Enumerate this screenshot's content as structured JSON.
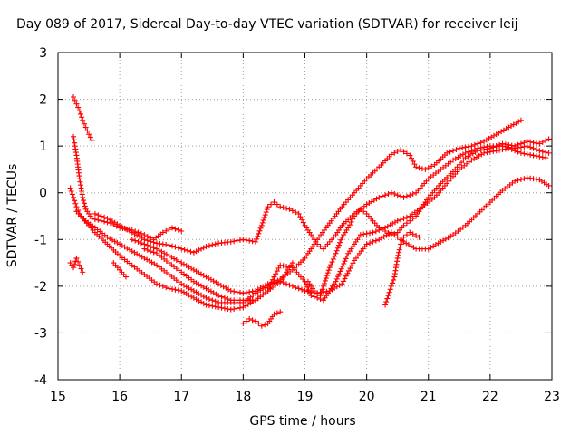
{
  "chart_data": {
    "type": "scatter",
    "title": "Day 089 of 2017, Sidereal Day-to-day VTEC variation (SDTVAR) for receiver leij",
    "xlabel": "GPS time / hours",
    "ylabel": "SDTVAR / TECUs",
    "xlim": [
      15,
      23
    ],
    "ylim": [
      -4,
      3
    ],
    "xticks": [
      "15",
      "16",
      "17",
      "18",
      "19",
      "20",
      "21",
      "22",
      "23"
    ],
    "yticks": [
      "-4",
      "-3",
      "-2",
      "-1",
      "0",
      "1",
      "2",
      "3"
    ],
    "grid": true,
    "marker": "+",
    "color": "#ff0000",
    "series": [
      {
        "name": "track-a",
        "points": [
          [
            15.25,
            2.05
          ],
          [
            15.3,
            1.9
          ],
          [
            15.35,
            1.75
          ],
          [
            15.4,
            1.55
          ],
          [
            15.45,
            1.4
          ],
          [
            15.5,
            1.25
          ],
          [
            15.55,
            1.12
          ]
        ]
      },
      {
        "name": "track-b",
        "points": [
          [
            15.25,
            1.2
          ],
          [
            15.3,
            0.8
          ],
          [
            15.35,
            0.3
          ],
          [
            15.4,
            -0.1
          ],
          [
            15.45,
            -0.35
          ],
          [
            15.55,
            -0.55
          ],
          [
            15.7,
            -0.6
          ],
          [
            15.85,
            -0.65
          ],
          [
            16.0,
            -0.75
          ],
          [
            16.2,
            -0.8
          ],
          [
            16.4,
            -0.9
          ],
          [
            16.55,
            -1.0
          ],
          [
            16.7,
            -0.85
          ],
          [
            16.85,
            -0.75
          ],
          [
            17.0,
            -0.82
          ]
        ]
      },
      {
        "name": "track-c",
        "points": [
          [
            15.2,
            0.1
          ],
          [
            15.25,
            -0.1
          ],
          [
            15.3,
            -0.3
          ],
          [
            15.35,
            -0.45
          ],
          [
            15.45,
            -0.6
          ],
          [
            15.6,
            -0.75
          ],
          [
            15.8,
            -0.95
          ],
          [
            16.0,
            -1.1
          ],
          [
            16.2,
            -1.25
          ],
          [
            16.4,
            -1.4
          ],
          [
            16.6,
            -1.55
          ],
          [
            16.8,
            -1.75
          ],
          [
            17.0,
            -1.95
          ],
          [
            17.2,
            -2.1
          ],
          [
            17.4,
            -2.25
          ],
          [
            17.6,
            -2.35
          ],
          [
            17.8,
            -2.35
          ],
          [
            18.0,
            -2.35
          ],
          [
            18.2,
            -2.15
          ],
          [
            18.4,
            -2.0
          ],
          [
            18.6,
            -1.85
          ],
          [
            18.8,
            -1.65
          ],
          [
            19.0,
            -1.4
          ],
          [
            19.2,
            -1.0
          ],
          [
            19.4,
            -0.65
          ],
          [
            19.6,
            -0.3
          ],
          [
            19.8,
            0.0
          ],
          [
            20.0,
            0.3
          ],
          [
            20.2,
            0.55
          ],
          [
            20.4,
            0.82
          ],
          [
            20.55,
            0.92
          ],
          [
            20.7,
            0.8
          ],
          [
            20.8,
            0.55
          ],
          [
            20.95,
            0.5
          ],
          [
            21.1,
            0.6
          ],
          [
            21.3,
            0.85
          ],
          [
            21.5,
            0.95
          ],
          [
            21.7,
            1.0
          ],
          [
            21.9,
            1.1
          ],
          [
            22.1,
            1.25
          ],
          [
            22.3,
            1.4
          ],
          [
            22.5,
            1.55
          ]
        ]
      },
      {
        "name": "track-d",
        "points": [
          [
            15.3,
            -0.4
          ],
          [
            15.4,
            -0.55
          ],
          [
            15.5,
            -0.7
          ],
          [
            15.6,
            -0.85
          ],
          [
            15.8,
            -1.1
          ],
          [
            16.0,
            -1.35
          ],
          [
            16.2,
            -1.55
          ],
          [
            16.4,
            -1.75
          ],
          [
            16.6,
            -1.95
          ],
          [
            16.8,
            -2.05
          ],
          [
            17.0,
            -2.1
          ],
          [
            17.2,
            -2.25
          ],
          [
            17.4,
            -2.4
          ],
          [
            17.6,
            -2.45
          ],
          [
            17.8,
            -2.5
          ],
          [
            18.0,
            -2.45
          ],
          [
            18.2,
            -2.3
          ],
          [
            18.4,
            -2.1
          ],
          [
            18.6,
            -1.9
          ],
          [
            18.8,
            -1.5
          ]
        ]
      },
      {
        "name": "track-e",
        "points": [
          [
            15.6,
            -0.45
          ],
          [
            15.8,
            -0.55
          ],
          [
            16.0,
            -0.7
          ],
          [
            16.2,
            -0.85
          ],
          [
            16.4,
            -1.0
          ],
          [
            16.6,
            -1.08
          ],
          [
            16.8,
            -1.12
          ],
          [
            17.0,
            -1.2
          ],
          [
            17.2,
            -1.28
          ],
          [
            17.4,
            -1.15
          ],
          [
            17.6,
            -1.08
          ],
          [
            17.8,
            -1.05
          ],
          [
            18.0,
            -1.0
          ],
          [
            18.2,
            -1.05
          ],
          [
            18.3,
            -0.7
          ],
          [
            18.4,
            -0.3
          ],
          [
            18.5,
            -0.2
          ],
          [
            18.6,
            -0.3
          ],
          [
            18.75,
            -0.35
          ],
          [
            18.9,
            -0.45
          ],
          [
            19.0,
            -0.7
          ],
          [
            19.1,
            -0.9
          ],
          [
            19.2,
            -1.1
          ],
          [
            19.3,
            -1.2
          ],
          [
            19.4,
            -1.05
          ],
          [
            19.5,
            -0.9
          ],
          [
            19.6,
            -0.7
          ],
          [
            19.8,
            -0.45
          ],
          [
            20.0,
            -0.25
          ],
          [
            20.2,
            -0.1
          ],
          [
            20.4,
            0.0
          ],
          [
            20.6,
            -0.1
          ],
          [
            20.8,
            0.0
          ],
          [
            21.0,
            0.3
          ],
          [
            21.2,
            0.5
          ],
          [
            21.4,
            0.7
          ],
          [
            21.6,
            0.85
          ],
          [
            21.8,
            0.95
          ],
          [
            22.0,
            1.0
          ],
          [
            22.2,
            1.0
          ],
          [
            22.4,
            0.95
          ],
          [
            22.6,
            1.0
          ],
          [
            22.8,
            0.9
          ],
          [
            22.95,
            0.85
          ]
        ]
      },
      {
        "name": "track-f",
        "points": [
          [
            16.4,
            -1.2
          ],
          [
            16.6,
            -1.3
          ],
          [
            16.8,
            -1.5
          ],
          [
            17.0,
            -1.7
          ],
          [
            17.2,
            -1.9
          ],
          [
            17.4,
            -2.05
          ],
          [
            17.6,
            -2.2
          ],
          [
            17.8,
            -2.3
          ],
          [
            18.0,
            -2.3
          ],
          [
            18.2,
            -2.3
          ],
          [
            18.4,
            -2.1
          ],
          [
            18.5,
            -1.8
          ],
          [
            18.6,
            -1.55
          ],
          [
            18.8,
            -1.6
          ],
          [
            19.0,
            -1.9
          ],
          [
            19.1,
            -2.2
          ],
          [
            19.3,
            -2.3
          ],
          [
            19.5,
            -1.9
          ],
          [
            19.7,
            -1.3
          ],
          [
            19.9,
            -0.9
          ],
          [
            20.1,
            -0.85
          ],
          [
            20.3,
            -0.75
          ],
          [
            20.5,
            -0.6
          ],
          [
            20.7,
            -0.5
          ],
          [
            20.9,
            -0.3
          ],
          [
            21.1,
            -0.1
          ],
          [
            21.3,
            0.2
          ],
          [
            21.5,
            0.5
          ],
          [
            21.7,
            0.7
          ],
          [
            21.9,
            0.85
          ],
          [
            22.1,
            0.9
          ],
          [
            22.3,
            0.95
          ],
          [
            22.5,
            0.85
          ],
          [
            22.7,
            0.8
          ],
          [
            22.9,
            0.75
          ]
        ]
      },
      {
        "name": "track-g",
        "points": [
          [
            16.2,
            -1.0
          ],
          [
            16.4,
            -1.1
          ],
          [
            16.6,
            -1.2
          ],
          [
            16.8,
            -1.35
          ],
          [
            17.0,
            -1.5
          ],
          [
            17.2,
            -1.65
          ],
          [
            17.4,
            -1.8
          ],
          [
            17.6,
            -1.95
          ],
          [
            17.8,
            -2.1
          ],
          [
            18.0,
            -2.15
          ],
          [
            18.2,
            -2.1
          ],
          [
            18.4,
            -1.95
          ],
          [
            18.6,
            -1.9
          ],
          [
            18.8,
            -2.0
          ],
          [
            19.0,
            -2.1
          ],
          [
            19.2,
            -2.15
          ],
          [
            19.4,
            -2.1
          ],
          [
            19.6,
            -1.95
          ],
          [
            19.8,
            -1.45
          ],
          [
            20.0,
            -1.1
          ],
          [
            20.2,
            -1.0
          ],
          [
            20.4,
            -0.85
          ],
          [
            20.5,
            -0.95
          ],
          [
            20.6,
            -1.05
          ],
          [
            20.8,
            -1.2
          ],
          [
            21.0,
            -1.2
          ],
          [
            21.2,
            -1.05
          ],
          [
            21.4,
            -0.9
          ],
          [
            21.6,
            -0.7
          ],
          [
            21.8,
            -0.45
          ],
          [
            22.0,
            -0.2
          ],
          [
            22.2,
            0.05
          ],
          [
            22.4,
            0.25
          ],
          [
            22.6,
            0.32
          ],
          [
            22.8,
            0.28
          ],
          [
            22.95,
            0.15
          ]
        ]
      },
      {
        "name": "track-h",
        "points": [
          [
            19.05,
            -1.9
          ],
          [
            19.15,
            -2.1
          ],
          [
            19.25,
            -2.2
          ],
          [
            19.3,
            -2.0
          ],
          [
            19.4,
            -1.6
          ],
          [
            19.5,
            -1.3
          ],
          [
            19.6,
            -0.95
          ],
          [
            19.7,
            -0.75
          ],
          [
            19.8,
            -0.5
          ],
          [
            19.9,
            -0.35
          ],
          [
            20.0,
            -0.45
          ],
          [
            20.1,
            -0.6
          ],
          [
            20.2,
            -0.75
          ],
          [
            20.3,
            -0.82
          ],
          [
            20.4,
            -0.9
          ],
          [
            20.5,
            -0.85
          ],
          [
            20.6,
            -0.7
          ],
          [
            20.7,
            -0.6
          ],
          [
            20.8,
            -0.5
          ],
          [
            20.9,
            -0.3
          ],
          [
            21.0,
            -0.1
          ],
          [
            21.2,
            0.2
          ],
          [
            21.4,
            0.45
          ],
          [
            21.6,
            0.75
          ],
          [
            21.8,
            0.9
          ],
          [
            22.0,
            0.95
          ],
          [
            22.2,
            1.05
          ],
          [
            22.4,
            1.0
          ],
          [
            22.6,
            1.1
          ],
          [
            22.8,
            1.05
          ],
          [
            22.95,
            1.15
          ]
        ]
      },
      {
        "name": "track-i",
        "points": [
          [
            20.3,
            -2.4
          ],
          [
            20.35,
            -2.2
          ],
          [
            20.4,
            -2.0
          ],
          [
            20.45,
            -1.8
          ],
          [
            20.5,
            -1.4
          ],
          [
            20.55,
            -1.1
          ],
          [
            20.6,
            -0.95
          ],
          [
            20.7,
            -0.85
          ],
          [
            20.85,
            -0.95
          ]
        ]
      },
      {
        "name": "track-j",
        "points": [
          [
            18.0,
            -2.8
          ],
          [
            18.1,
            -2.7
          ],
          [
            18.2,
            -2.75
          ],
          [
            18.3,
            -2.85
          ],
          [
            18.4,
            -2.8
          ],
          [
            18.5,
            -2.6
          ],
          [
            18.6,
            -2.55
          ]
        ]
      },
      {
        "name": "track-k",
        "points": [
          [
            15.2,
            -1.5
          ],
          [
            15.25,
            -1.6
          ],
          [
            15.3,
            -1.4
          ],
          [
            15.35,
            -1.55
          ],
          [
            15.4,
            -1.7
          ]
        ]
      },
      {
        "name": "track-l",
        "points": [
          [
            15.9,
            -1.5
          ],
          [
            16.0,
            -1.65
          ],
          [
            16.1,
            -1.8
          ]
        ]
      }
    ]
  }
}
